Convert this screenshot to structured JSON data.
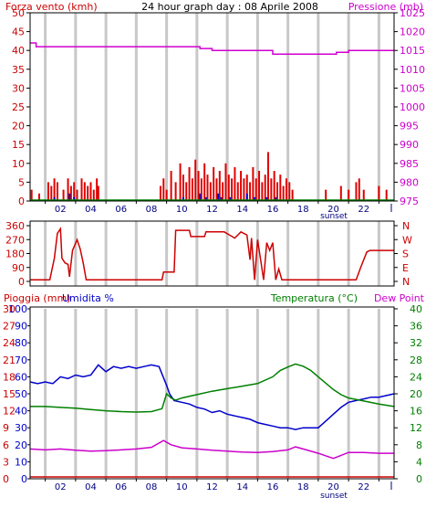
{
  "chart_data": [
    {
      "type": "bar",
      "title": "24 hour graph day : 08 Aprile 2008",
      "left_label": "Forza vento (kmh)",
      "right_label": "Pressione (mb)",
      "left_ticks": [
        "0",
        "5",
        "10",
        "15",
        "20",
        "25",
        "30",
        "35",
        "40",
        "45",
        "50"
      ],
      "right_ticks": [
        "975",
        "980",
        "985",
        "990",
        "995",
        "1000",
        "1005",
        "1010",
        "1015",
        "1020",
        "1025"
      ],
      "x_ticks": [
        "02",
        "04",
        "06",
        "08",
        "10",
        "12",
        "14",
        "16",
        "18",
        "20",
        "22"
      ],
      "sunset_label": "sunset",
      "ylim_left": [
        0,
        50
      ],
      "ylim_right": [
        975,
        1025
      ],
      "xlim": [
        0,
        24
      ],
      "colors": {
        "wind": "#e00000",
        "gust_fill": "#a05000",
        "pressure": "#d000d0",
        "green": "#008000",
        "blue": "#0000cc",
        "grid": "#c8c8c8",
        "axis_left": "#cc0000",
        "axis_right": "#cc00cc"
      },
      "wind_bars": [
        [
          0.1,
          3
        ],
        [
          0.6,
          2
        ],
        [
          1.2,
          5
        ],
        [
          1.4,
          4
        ],
        [
          1.6,
          6
        ],
        [
          1.8,
          5
        ],
        [
          2.2,
          3
        ],
        [
          2.5,
          6
        ],
        [
          2.7,
          4
        ],
        [
          2.9,
          5
        ],
        [
          3.1,
          3
        ],
        [
          3.4,
          6
        ],
        [
          3.6,
          5
        ],
        [
          3.8,
          4
        ],
        [
          4.0,
          5
        ],
        [
          4.2,
          3
        ],
        [
          4.4,
          6
        ],
        [
          4.5,
          4
        ],
        [
          8.6,
          4
        ],
        [
          8.8,
          6
        ],
        [
          9.0,
          3
        ],
        [
          9.3,
          8
        ],
        [
          9.6,
          5
        ],
        [
          9.9,
          10
        ],
        [
          10.1,
          7
        ],
        [
          10.3,
          5
        ],
        [
          10.5,
          9
        ],
        [
          10.7,
          6
        ],
        [
          10.9,
          11
        ],
        [
          11.1,
          8
        ],
        [
          11.3,
          6
        ],
        [
          11.5,
          10
        ],
        [
          11.7,
          7
        ],
        [
          11.9,
          5
        ],
        [
          12.1,
          9
        ],
        [
          12.3,
          6
        ],
        [
          12.5,
          8
        ],
        [
          12.7,
          5
        ],
        [
          12.9,
          10
        ],
        [
          13.1,
          7
        ],
        [
          13.3,
          6
        ],
        [
          13.5,
          9
        ],
        [
          13.7,
          5
        ],
        [
          13.9,
          8
        ],
        [
          14.1,
          6
        ],
        [
          14.3,
          7
        ],
        [
          14.5,
          5
        ],
        [
          14.7,
          9
        ],
        [
          14.9,
          6
        ],
        [
          15.1,
          8
        ],
        [
          15.3,
          5
        ],
        [
          15.5,
          7
        ],
        [
          15.7,
          13
        ],
        [
          15.9,
          6
        ],
        [
          16.1,
          8
        ],
        [
          16.3,
          5
        ],
        [
          16.5,
          7
        ],
        [
          16.7,
          4
        ],
        [
          16.9,
          6
        ],
        [
          17.1,
          5
        ],
        [
          17.3,
          3
        ],
        [
          19.5,
          3
        ],
        [
          20.5,
          4
        ],
        [
          21.0,
          3
        ],
        [
          21.5,
          5
        ],
        [
          21.7,
          6
        ],
        [
          22.0,
          3
        ],
        [
          23.0,
          4
        ],
        [
          23.5,
          3
        ]
      ],
      "wind_avg_bars": [
        [
          1.6,
          1
        ],
        [
          2.6,
          2
        ],
        [
          2.9,
          1
        ],
        [
          10.1,
          1
        ],
        [
          11.2,
          2
        ],
        [
          11.6,
          1
        ],
        [
          12.4,
          2
        ],
        [
          12.6,
          1
        ],
        [
          13.2,
          1
        ],
        [
          14.3,
          2
        ],
        [
          14.8,
          1
        ],
        [
          15.6,
          1
        ],
        [
          16.2,
          1
        ]
      ],
      "pressure": [
        [
          0,
          1017
        ],
        [
          0.4,
          1017
        ],
        [
          0.4,
          1016
        ],
        [
          11.2,
          1016
        ],
        [
          11.2,
          1015.5
        ],
        [
          12.0,
          1015.5
        ],
        [
          12.0,
          1015
        ],
        [
          16.0,
          1015
        ],
        [
          16.0,
          1014
        ],
        [
          20.2,
          1014
        ],
        [
          20.2,
          1014.5
        ],
        [
          21.0,
          1014.5
        ],
        [
          21.0,
          1015
        ],
        [
          24,
          1015
        ]
      ]
    },
    {
      "type": "line",
      "left_ticks": [
        "0",
        "90",
        "180",
        "270",
        "360"
      ],
      "right_ticks": [
        "N",
        "E",
        "S",
        "W",
        "N"
      ],
      "ylim": [
        0,
        360
      ],
      "xlim": [
        0,
        24
      ],
      "color": "#cc0000",
      "direction": [
        [
          0,
          10
        ],
        [
          1.3,
          10
        ],
        [
          1.6,
          150
        ],
        [
          1.8,
          310
        ],
        [
          2.0,
          340
        ],
        [
          2.1,
          150
        ],
        [
          2.3,
          120
        ],
        [
          2.5,
          110
        ],
        [
          2.6,
          30
        ],
        [
          2.8,
          200
        ],
        [
          3.1,
          270
        ],
        [
          3.3,
          210
        ],
        [
          3.5,
          120
        ],
        [
          3.7,
          10
        ],
        [
          8.7,
          10
        ],
        [
          8.8,
          60
        ],
        [
          9.5,
          60
        ],
        [
          9.6,
          330
        ],
        [
          10.5,
          330
        ],
        [
          10.6,
          290
        ],
        [
          11.5,
          290
        ],
        [
          11.6,
          320
        ],
        [
          12.8,
          320
        ],
        [
          13.5,
          280
        ],
        [
          13.9,
          320
        ],
        [
          14.3,
          300
        ],
        [
          14.5,
          140
        ],
        [
          14.6,
          280
        ],
        [
          14.8,
          10
        ],
        [
          15.0,
          270
        ],
        [
          15.2,
          140
        ],
        [
          15.4,
          10
        ],
        [
          15.6,
          250
        ],
        [
          15.8,
          200
        ],
        [
          16.0,
          250
        ],
        [
          16.2,
          10
        ],
        [
          16.4,
          80
        ],
        [
          16.6,
          10
        ],
        [
          21.5,
          10
        ],
        [
          21.8,
          90
        ],
        [
          22.2,
          190
        ],
        [
          22.4,
          200
        ],
        [
          24,
          200
        ]
      ]
    },
    {
      "type": "line",
      "left_label": "Pioggia (mm)",
      "left_label2": "Umidita %",
      "right_label": "Temperatura (°C)",
      "right_label2": "Dew Point",
      "rain_ticks": [
        "0",
        "3",
        "6",
        "9",
        "12",
        "15",
        "18",
        "21",
        "24",
        "27",
        "30"
      ],
      "hum_ticks": [
        "0",
        "10",
        "20",
        "30",
        "40",
        "50",
        "60",
        "70",
        "80",
        "90",
        "100"
      ],
      "temp_ticks": [
        "0",
        "4",
        "8",
        "12",
        "16",
        "20",
        "24",
        "28",
        "32",
        "36",
        "40"
      ],
      "x_ticks": [
        "02",
        "04",
        "06",
        "08",
        "10",
        "12",
        "14",
        "16",
        "18",
        "20",
        "22"
      ],
      "sunset_label": "sunset",
      "ylim_left": [
        0,
        100
      ],
      "ylim_right": [
        0,
        40
      ],
      "xlim": [
        0,
        24
      ],
      "series": [
        {
          "key": "humidity",
          "color": "#0000cc",
          "values": [
            [
              0,
              57
            ],
            [
              0.5,
              56
            ],
            [
              1.0,
              57
            ],
            [
              1.5,
              56
            ],
            [
              2.0,
              60
            ],
            [
              2.5,
              59
            ],
            [
              3.0,
              61
            ],
            [
              3.5,
              60
            ],
            [
              4.0,
              61
            ],
            [
              4.5,
              67
            ],
            [
              5.0,
              63
            ],
            [
              5.5,
              66
            ],
            [
              6.0,
              65
            ],
            [
              6.5,
              66
            ],
            [
              7.0,
              65
            ],
            [
              7.5,
              66
            ],
            [
              8.0,
              67
            ],
            [
              8.5,
              66
            ],
            [
              9.0,
              55
            ],
            [
              9.2,
              50
            ],
            [
              9.5,
              46
            ],
            [
              10.0,
              45
            ],
            [
              10.5,
              44
            ],
            [
              11.0,
              42
            ],
            [
              11.5,
              41
            ],
            [
              12.0,
              39
            ],
            [
              12.5,
              40
            ],
            [
              13.0,
              38
            ],
            [
              13.5,
              37
            ],
            [
              14.0,
              36
            ],
            [
              14.5,
              35
            ],
            [
              15.0,
              33
            ],
            [
              15.5,
              32
            ],
            [
              16.0,
              31
            ],
            [
              16.5,
              30
            ],
            [
              17.0,
              30
            ],
            [
              17.5,
              29
            ],
            [
              18.0,
              30
            ],
            [
              18.5,
              30
            ],
            [
              19.0,
              30
            ],
            [
              19.5,
              34
            ],
            [
              20.0,
              38
            ],
            [
              20.5,
              42
            ],
            [
              21.0,
              45
            ],
            [
              21.5,
              46
            ],
            [
              22.0,
              47
            ],
            [
              22.5,
              48
            ],
            [
              23.0,
              48
            ],
            [
              23.5,
              49
            ],
            [
              24,
              50
            ]
          ]
        },
        {
          "key": "temperature",
          "color": "#008000",
          "values": [
            [
              0,
              17
            ],
            [
              1,
              17
            ],
            [
              2,
              16.8
            ],
            [
              3,
              16.6
            ],
            [
              4,
              16.3
            ],
            [
              5,
              16
            ],
            [
              6,
              15.8
            ],
            [
              7,
              15.7
            ],
            [
              8,
              15.8
            ],
            [
              8.7,
              16.5
            ],
            [
              9.0,
              20
            ],
            [
              9.3,
              19
            ],
            [
              9.6,
              18.5
            ],
            [
              10,
              19
            ],
            [
              11,
              19.8
            ],
            [
              12,
              20.6
            ],
            [
              13,
              21.2
            ],
            [
              14,
              21.8
            ],
            [
              15,
              22.4
            ],
            [
              16,
              24
            ],
            [
              16.5,
              25.5
            ],
            [
              17,
              26.3
            ],
            [
              17.5,
              27
            ],
            [
              18,
              26.5
            ],
            [
              18.5,
              25.5
            ],
            [
              19,
              24
            ],
            [
              19.5,
              22.5
            ],
            [
              20,
              21
            ],
            [
              20.5,
              19.8
            ],
            [
              21,
              19
            ],
            [
              22,
              18.3
            ],
            [
              23,
              17.6
            ],
            [
              24,
              17
            ]
          ]
        },
        {
          "key": "dewpoint",
          "color": "#cc00cc",
          "values": [
            [
              0,
              7
            ],
            [
              1,
              6.8
            ],
            [
              2,
              7
            ],
            [
              3,
              6.7
            ],
            [
              4,
              6.5
            ],
            [
              5,
              6.6
            ],
            [
              6,
              6.8
            ],
            [
              7,
              7
            ],
            [
              8,
              7.4
            ],
            [
              8.8,
              9
            ],
            [
              9.3,
              8
            ],
            [
              10,
              7.3
            ],
            [
              11,
              7
            ],
            [
              12,
              6.7
            ],
            [
              13,
              6.5
            ],
            [
              14,
              6.3
            ],
            [
              15,
              6.2
            ],
            [
              16,
              6.4
            ],
            [
              17,
              6.8
            ],
            [
              17.5,
              7.5
            ],
            [
              18,
              7
            ],
            [
              19,
              6
            ],
            [
              19.5,
              5.4
            ],
            [
              20,
              4.8
            ],
            [
              20.5,
              5.5
            ],
            [
              21,
              6.2
            ],
            [
              22,
              6.2
            ],
            [
              23,
              6
            ],
            [
              24,
              6
            ]
          ]
        },
        {
          "key": "rain",
          "color": "#cc0000",
          "values": [
            [
              0,
              0
            ],
            [
              24,
              0
            ]
          ]
        }
      ]
    }
  ]
}
